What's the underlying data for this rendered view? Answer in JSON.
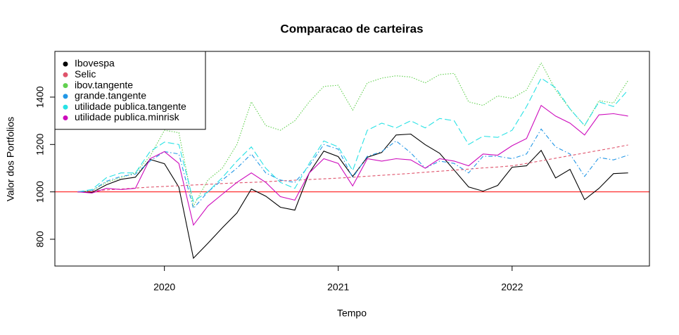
{
  "chart_data": {
    "type": "line",
    "title": "Comparacao de carteiras",
    "xlabel": "Tempo",
    "ylabel": "Valor dos Portfolios",
    "x": [
      2019.5,
      2019.583,
      2019.667,
      2019.75,
      2019.833,
      2019.917,
      2020,
      2020.083,
      2020.167,
      2020.25,
      2020.333,
      2020.417,
      2020.5,
      2020.583,
      2020.667,
      2020.75,
      2020.833,
      2020.917,
      2021,
      2021.083,
      2021.167,
      2021.25,
      2021.333,
      2021.417,
      2021.5,
      2021.583,
      2021.667,
      2021.75,
      2021.833,
      2021.917,
      2022,
      2022.083,
      2022.167,
      2022.25,
      2022.333,
      2022.417,
      2022.5,
      2022.583,
      2022.667
    ],
    "xlim": [
      2019.37,
      2022.79
    ],
    "xticks": [
      2020,
      2021,
      2022
    ],
    "ylim": [
      687,
      1593
    ],
    "yticks": [
      800,
      1000,
      1200,
      1400
    ],
    "legend": "top-left",
    "reference_line": {
      "value": 1000,
      "color": "#ff0000"
    },
    "series": [
      {
        "name": "Ibovespa",
        "color": "#000000",
        "linestyle": "solid",
        "values": [
          1000,
          997,
          1030,
          1053,
          1062,
          1137,
          1119,
          1020,
          720,
          783,
          848,
          911,
          1012,
          982,
          935,
          923,
          1080,
          1172,
          1149,
          1065,
          1146,
          1166,
          1240,
          1244,
          1199,
          1163,
          1092,
          1021,
          1003,
          1027,
          1104,
          1110,
          1175,
          1059,
          1095,
          967,
          1015,
          1077,
          1080
        ]
      },
      {
        "name": "Selic",
        "color": "#DF536B",
        "linestyle": "dashed",
        "values": [
          1000,
          1004,
          1008,
          1012,
          1016,
          1020,
          1023,
          1026,
          1029,
          1032,
          1035,
          1038,
          1040,
          1043,
          1046,
          1049,
          1052,
          1055,
          1058,
          1062,
          1066,
          1070,
          1074,
          1078,
          1083,
          1087,
          1092,
          1096,
          1101,
          1105,
          1110,
          1120,
          1131,
          1142,
          1153,
          1164,
          1175,
          1186,
          1198
        ]
      },
      {
        "name": "ibov.tangente",
        "color": "#61D04F",
        "linestyle": "dotted",
        "values": [
          1000,
          1005,
          1040,
          1060,
          1080,
          1150,
          1260,
          1250,
          940,
          1050,
          1100,
          1200,
          1380,
          1280,
          1260,
          1300,
          1380,
          1445,
          1450,
          1345,
          1460,
          1480,
          1490,
          1485,
          1460,
          1495,
          1500,
          1380,
          1365,
          1405,
          1395,
          1430,
          1545,
          1430,
          1350,
          1280,
          1385,
          1375,
          1470
        ]
      },
      {
        "name": "grande.tangente",
        "color": "#2297E6",
        "linestyle": "dotdash",
        "values": [
          1000,
          1005,
          1045,
          1065,
          1075,
          1130,
          1170,
          1160,
          930,
          1000,
          1050,
          1100,
          1160,
          1080,
          1050,
          1040,
          1110,
          1200,
          1180,
          1060,
          1150,
          1170,
          1215,
          1165,
          1100,
          1130,
          1120,
          1080,
          1150,
          1150,
          1140,
          1160,
          1265,
          1190,
          1160,
          1065,
          1145,
          1135,
          1155
        ]
      },
      {
        "name": "utilidade publica.tangente",
        "color": "#28E2E5",
        "linestyle": "longdash",
        "values": [
          1000,
          1010,
          1060,
          1080,
          1080,
          1170,
          1210,
          1200,
          960,
          1000,
          1060,
          1130,
          1190,
          1100,
          1040,
          1015,
          1120,
          1215,
          1190,
          1090,
          1260,
          1290,
          1270,
          1300,
          1270,
          1310,
          1300,
          1200,
          1235,
          1230,
          1260,
          1360,
          1480,
          1440,
          1350,
          1280,
          1380,
          1360,
          1430
        ]
      },
      {
        "name": "utilidade publica.minrisk",
        "color": "#CD0BBC",
        "linestyle": "solid",
        "values": [
          1000,
          995,
          1015,
          1010,
          1015,
          1140,
          1170,
          1120,
          860,
          940,
          990,
          1040,
          1080,
          1040,
          980,
          965,
          1080,
          1140,
          1120,
          1025,
          1140,
          1130,
          1140,
          1135,
          1100,
          1140,
          1130,
          1110,
          1160,
          1155,
          1195,
          1225,
          1365,
          1320,
          1290,
          1240,
          1325,
          1330,
          1320
        ]
      }
    ]
  }
}
